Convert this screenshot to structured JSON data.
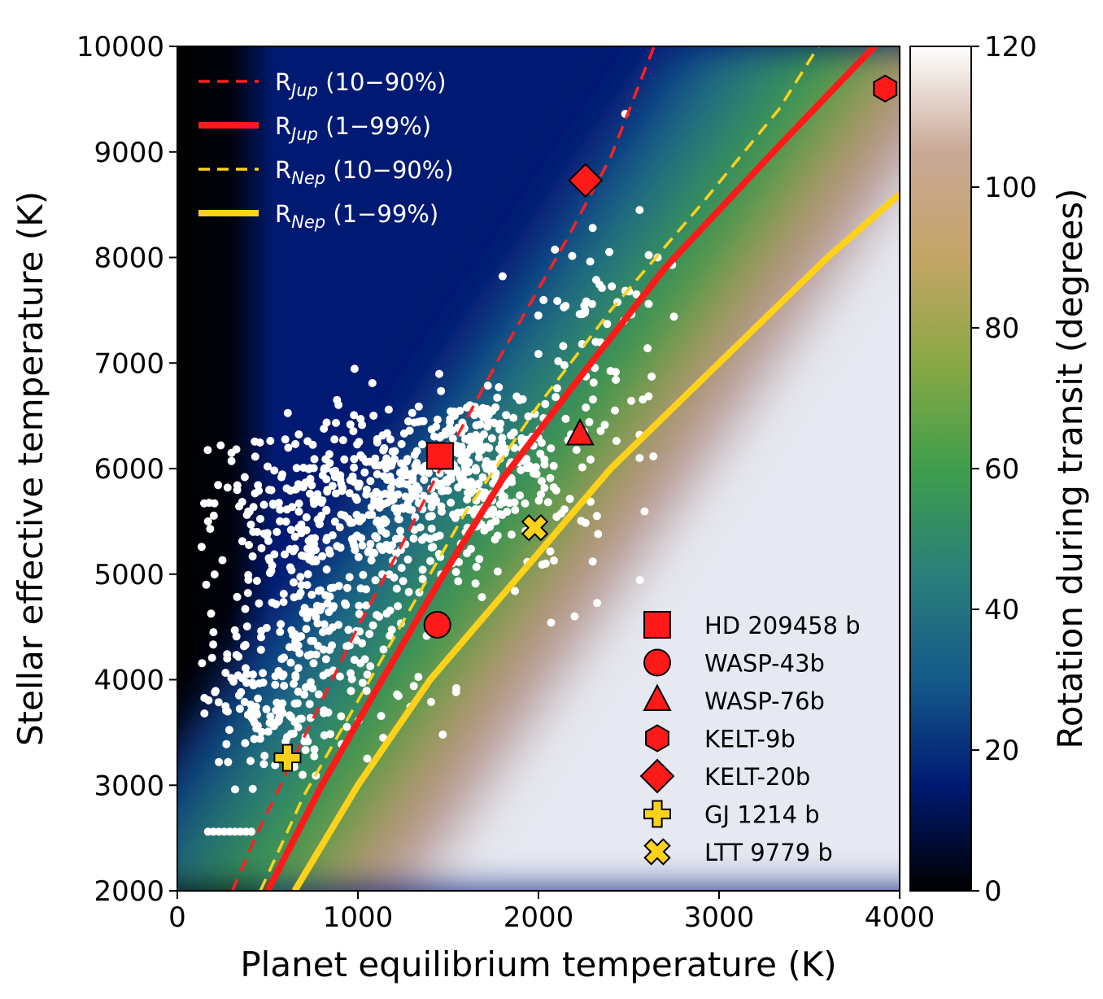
{
  "chart_data": {
    "type": "scatter",
    "xlabel": "Planet equilibrium temperature (K)",
    "ylabel": "Stellar effective temperature (K)",
    "xlim": [
      0,
      4000
    ],
    "ylim": [
      2000,
      10000
    ],
    "xticks": [
      0,
      1000,
      2000,
      3000,
      4000
    ],
    "yticks": [
      2000,
      3000,
      4000,
      5000,
      6000,
      7000,
      8000,
      9000,
      10000
    ],
    "background": "heatmap",
    "colorbar": {
      "label": "Rotation during transit (degrees)",
      "range": [
        0,
        120
      ],
      "ticks": [
        0,
        20,
        40,
        60,
        80,
        100,
        120
      ],
      "colormap": [
        "#000000",
        "#001a73",
        "#145a8a",
        "#2a7f7a",
        "#3f9e4c",
        "#8aa844",
        "#c4a567",
        "#c9a896",
        "#ffffff"
      ]
    },
    "curves": [
      {
        "name": "R",
        "sub": "Jup",
        "range": " (10−90%)",
        "color": "#ff2020",
        "style": "dashed",
        "points": [
          [
            305,
            2000
          ],
          [
            430,
            2500
          ],
          [
            600,
            3100
          ],
          [
            800,
            3800
          ],
          [
            1000,
            4500
          ],
          [
            1250,
            5300
          ],
          [
            1500,
            6150
          ],
          [
            1800,
            7100
          ],
          [
            2150,
            8150
          ],
          [
            2400,
            8950
          ],
          [
            2640,
            10000
          ]
        ]
      },
      {
        "name": "R",
        "sub": "Jup",
        "range": " (1−99%)",
        "color": "#ff1a1a",
        "style": "solid",
        "points": [
          [
            500,
            2000
          ],
          [
            800,
            3000
          ],
          [
            1100,
            3900
          ],
          [
            1440,
            4900
          ],
          [
            1800,
            5900
          ],
          [
            2200,
            6800
          ],
          [
            2700,
            7900
          ],
          [
            3300,
            9000
          ],
          [
            3860,
            10000
          ]
        ]
      },
      {
        "name": "R",
        "sub": "Nep",
        "range": " (10−90%)",
        "color": "#ffd21a",
        "style": "dashed",
        "points": [
          [
            460,
            2000
          ],
          [
            700,
            2900
          ],
          [
            1000,
            3800
          ],
          [
            1300,
            4700
          ],
          [
            1600,
            5600
          ],
          [
            2000,
            6600
          ],
          [
            2400,
            7500
          ],
          [
            2900,
            8500
          ],
          [
            3330,
            9400
          ],
          [
            3550,
            10000
          ]
        ]
      },
      {
        "name": "R",
        "sub": "Nep",
        "range": " (1−99%)",
        "color": "#ffd21a",
        "style": "solid",
        "points": [
          [
            650,
            2000
          ],
          [
            1000,
            3000
          ],
          [
            1400,
            4000
          ],
          [
            1900,
            5000
          ],
          [
            2400,
            6000
          ],
          [
            3000,
            7000
          ],
          [
            3600,
            8000
          ],
          [
            4000,
            8600
          ]
        ]
      }
    ],
    "planets": [
      {
        "name": "HD 209458 b",
        "marker": "square",
        "color": "#ff1a1a",
        "x": 1455,
        "y": 6120
      },
      {
        "name": "WASP-43b",
        "marker": "circle",
        "color": "#ff1a1a",
        "x": 1440,
        "y": 4520
      },
      {
        "name": "WASP-76b",
        "marker": "triangle",
        "color": "#ff1a1a",
        "x": 2230,
        "y": 6320
      },
      {
        "name": "KELT-9b",
        "marker": "hexagon",
        "color": "#ff1a1a",
        "x": 3920,
        "y": 9600
      },
      {
        "name": "KELT-20b",
        "marker": "diamond",
        "color": "#ff1a1a",
        "x": 2260,
        "y": 8730
      },
      {
        "name": "GJ 1214 b",
        "marker": "plus",
        "color": "#ffd21a",
        "x": 610,
        "y": 3260
      },
      {
        "name": "LTT 9779 b",
        "marker": "x",
        "color": "#ffd21a",
        "x": 1980,
        "y": 5440
      }
    ],
    "population": {
      "color": "#ffffff",
      "clusters": [
        {
          "cx": 1200,
          "cy": 5700,
          "sx": 500,
          "sy": 380,
          "n": 420
        },
        {
          "cx": 1650,
          "cy": 6150,
          "sx": 220,
          "sy": 260,
          "n": 200
        },
        {
          "cx": 700,
          "cy": 5200,
          "sx": 300,
          "sy": 600,
          "n": 150
        },
        {
          "cx": 500,
          "cy": 3700,
          "sx": 180,
          "sy": 330,
          "n": 120
        },
        {
          "cx": 900,
          "cy": 4300,
          "sx": 300,
          "sy": 400,
          "n": 90
        },
        {
          "cx": 2200,
          "cy": 6700,
          "sx": 250,
          "sy": 500,
          "n": 45
        },
        {
          "cx": 2400,
          "cy": 7600,
          "sx": 180,
          "sy": 300,
          "n": 25
        }
      ],
      "row": {
        "y": 2560,
        "x": [
          170,
          200,
          230,
          260,
          290,
          320,
          350,
          380,
          410
        ]
      },
      "extras": [
        [
          2480,
          9360
        ],
        [
          2560,
          8450
        ],
        [
          2300,
          8280
        ],
        [
          2660,
          8000
        ],
        [
          2740,
          7930
        ],
        [
          2610,
          7560
        ],
        [
          2750,
          7440
        ],
        [
          2380,
          7370
        ],
        [
          1080,
          6810
        ],
        [
          240,
          6220
        ],
        [
          1470,
          3480
        ],
        [
          1140,
          3450
        ],
        [
          2070,
          4540
        ],
        [
          2200,
          4600
        ],
        [
          1870,
          4840
        ],
        [
          2300,
          5120
        ],
        [
          2330,
          5380
        ],
        [
          2560,
          6320
        ],
        [
          2560,
          6100
        ],
        [
          160,
          4900
        ],
        [
          200,
          4450
        ],
        [
          230,
          3220
        ],
        [
          320,
          2960
        ],
        [
          2040,
          5100
        ]
      ]
    }
  }
}
